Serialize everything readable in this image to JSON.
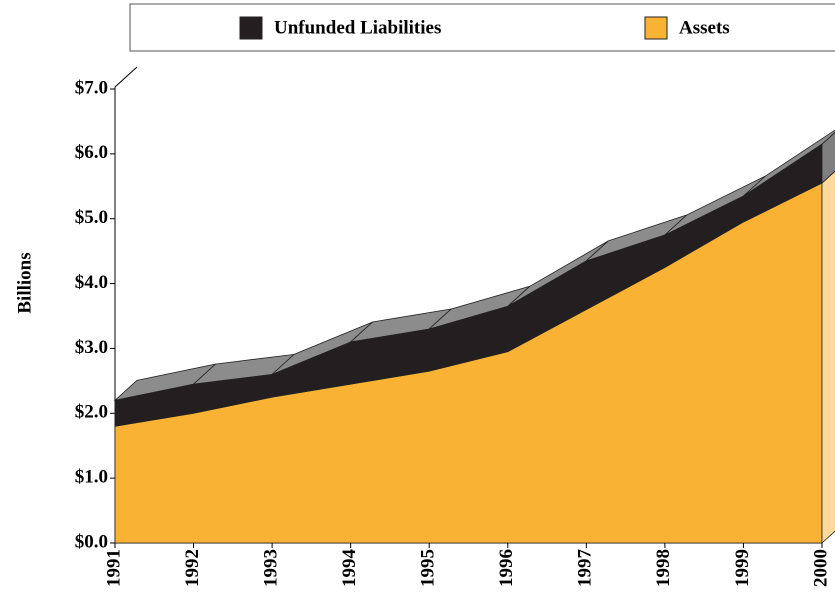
{
  "chart_data": {
    "type": "stacked_area",
    "y_label": "Billions",
    "categories": [
      "1991",
      "1992",
      "1993",
      "1994",
      "1995",
      "1996",
      "1997",
      "1998",
      "1999",
      "2000"
    ],
    "series": [
      {
        "name": "Unfunded Liabilities",
        "color": "#231f20",
        "values": [
          0.4,
          0.45,
          0.35,
          0.65,
          0.65,
          0.7,
          0.75,
          0.5,
          0.4,
          0.6
        ]
      },
      {
        "name": "Assets",
        "color": "#f9b233",
        "values": [
          1.8,
          2.0,
          2.25,
          2.45,
          2.65,
          2.95,
          3.6,
          4.25,
          4.95,
          5.55
        ]
      }
    ],
    "ylim": [
      0,
      7
    ],
    "yticks": [
      {
        "value": 0,
        "label": "$0.0"
      },
      {
        "value": 1,
        "label": "$1.0"
      },
      {
        "value": 2,
        "label": "$2.0"
      },
      {
        "value": 3,
        "label": "$3.0"
      },
      {
        "value": 4,
        "label": "$4.0"
      },
      {
        "value": 5,
        "label": "$5.0"
      },
      {
        "value": 6,
        "label": "$6.0"
      },
      {
        "value": 7,
        "label": "$7.0"
      }
    ],
    "legend": "top"
  }
}
